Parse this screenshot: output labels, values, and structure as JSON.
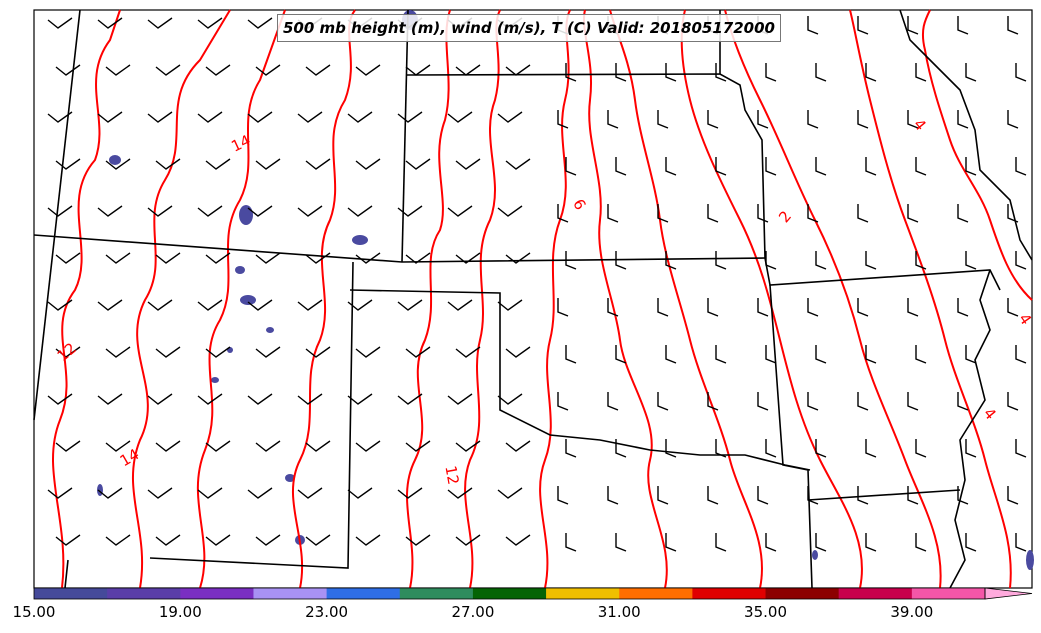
{
  "title": "500 mb height (m), wind (m/s), T (C) Valid: 201805172000",
  "contour_labels": [
    {
      "text": "14",
      "role": "temperature-contour-label"
    },
    {
      "text": "12",
      "role": "temperature-contour-label"
    },
    {
      "text": "14",
      "role": "temperature-contour-label"
    },
    {
      "text": "12",
      "role": "temperature-contour-label"
    },
    {
      "text": "6",
      "role": "temperature-contour-label"
    },
    {
      "text": "2",
      "role": "temperature-contour-label"
    },
    {
      "text": "4",
      "role": "temperature-contour-label"
    },
    {
      "text": "4",
      "role": "temperature-contour-label"
    },
    {
      "text": "4",
      "role": "temperature-contour-label"
    }
  ],
  "colorbar": {
    "ticks": [
      "15.00",
      "19.00",
      "23.00",
      "27.00",
      "31.00",
      "35.00",
      "39.00"
    ],
    "colors": [
      "#454a9a",
      "#5a3ea8",
      "#7a2fc2",
      "#a892f4",
      "#2f6ee6",
      "#2e8c5e",
      "#056405",
      "#efbf00",
      "#ff6e00",
      "#e00000",
      "#8c0000",
      "#c8004c",
      "#f456a8",
      "#ffaadd"
    ]
  },
  "colors": {
    "contour": "#ff0000",
    "boundary": "#000000",
    "shading": "#4a4aa0"
  }
}
